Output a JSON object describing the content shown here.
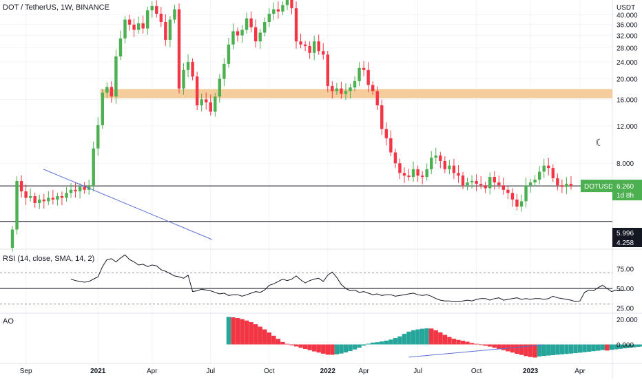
{
  "title": "DOT / TetherUS, 1W, BINANCE",
  "currency_label": "USDT",
  "theme_toggle_icon": "moon-icon",
  "rsi_label": "RSI (14, close, SMA, 14, 2)",
  "ao_label": "AO",
  "colors": {
    "up": "#26a69a",
    "up_bright": "#4caf50",
    "down": "#f23645",
    "zone": "#f3c48c",
    "trendline": "#5b6fd6",
    "grid": "#f0f3fa",
    "axis_text": "#131722",
    "ticker_badge": "#4caf50",
    "dark_badge": "#131722"
  },
  "chart_data": [
    {
      "type": "candlestick",
      "panel": "price",
      "ylabel": "USDT",
      "ylim": [
        3.2,
        47
      ],
      "yticks": [
        8,
        12,
        16,
        20,
        24,
        28,
        32,
        36,
        40
      ],
      "ytick_labels": [
        "8.000",
        "12.000",
        "16.000",
        "20.000",
        "24.000",
        "28.000",
        "32.000",
        "36.000",
        "40.000"
      ],
      "x_labels": [
        "Sep",
        "2021",
        "Apr",
        "Jul",
        "Oct",
        "2022",
        "Apr",
        "Jul",
        "Oct",
        "2023",
        "Apr"
      ],
      "resistance_zone": [
        16.2,
        17.9
      ],
      "horizontal_lines": [
        6.26,
        4.258
      ],
      "trendline": [
        [
          6.9,
          7.5
        ],
        [
          44.3,
          3.5
        ]
      ],
      "price_badges": [
        {
          "symbol": "DOTUSDT",
          "value": "6.260",
          "sub": "1d 8h"
        },
        {
          "value": "5.996"
        },
        {
          "value": "4.258"
        }
      ],
      "closes": [
        3.9,
        6.6,
        5.9,
        5.5,
        5.6,
        5.2,
        5.4,
        5.3,
        5.5,
        5.4,
        5.6,
        5.5,
        5.8,
        6.0,
        5.9,
        6.2,
        6.0,
        6.3,
        9.4,
        12.1,
        17.2,
        18.3,
        16.5,
        25.5,
        31.0,
        38.0,
        36.0,
        34.0,
        36.5,
        34.5,
        42.0,
        44.0,
        40.5,
        37.0,
        30.5,
        38.0,
        42.5,
        18.0,
        22.0,
        24.0,
        20.5,
        15.0,
        16.0,
        15.5,
        14.0,
        16.5,
        20.0,
        23.5,
        29.0,
        33.5,
        32.0,
        34.0,
        38.5,
        35.0,
        30.0,
        33.0,
        37.0,
        40.5,
        42.5,
        41.5,
        44.5,
        47.0,
        43.0,
        30.0,
        29.0,
        28.5,
        26.5,
        30.0,
        27.0,
        26.0,
        18.5,
        17.5,
        18.0,
        17.0,
        17.5,
        18.2,
        19.5,
        22.5,
        22.0,
        18.7,
        17.5,
        15.0,
        11.6,
        10.5,
        9.0,
        8.0,
        7.2,
        7.0,
        6.9,
        7.5,
        7.0,
        6.9,
        7.5,
        8.5,
        8.7,
        8.2,
        7.5,
        7.8,
        7.2,
        7.0,
        6.3,
        6.5,
        6.6,
        6.4,
        6.3,
        6.1,
        6.9,
        6.5,
        6.3,
        6.0,
        5.8,
        5.4,
        5.0,
        5.3,
        6.3,
        6.5,
        6.7,
        7.3,
        7.8,
        7.6,
        6.8,
        6.3,
        6.2,
        6.4,
        6.26
      ]
    },
    {
      "type": "line",
      "panel": "rsi",
      "name": "RSI (14, close, SMA, 14, 2)",
      "ylim": [
        21,
        95
      ],
      "yticks": [
        25,
        50,
        75
      ],
      "ytick_labels": [
        "25.00",
        "50.00",
        "75.00"
      ],
      "bands": [
        30,
        50,
        70
      ],
      "x_start_index": 13,
      "values": [
        62,
        60,
        59,
        58,
        59,
        62,
        65,
        78,
        87,
        88,
        84,
        89,
        93,
        87,
        84,
        80,
        81,
        78,
        80,
        79,
        74,
        72,
        69,
        66,
        65,
        63,
        67,
        46,
        47,
        49,
        48,
        47,
        45,
        43,
        44,
        41,
        42,
        42,
        40,
        42,
        44,
        46,
        45,
        48,
        54,
        56,
        59,
        62,
        60,
        62,
        66,
        61,
        57,
        60,
        62,
        63,
        59,
        67,
        71,
        64,
        55,
        50,
        47,
        48,
        45,
        46,
        44,
        42,
        43,
        41,
        42,
        42,
        40,
        41,
        42,
        43,
        44,
        42,
        41,
        42,
        40,
        37,
        35,
        34,
        34,
        33,
        33,
        34,
        35,
        34,
        36,
        37,
        37,
        35,
        37,
        38,
        35,
        36,
        37,
        38,
        36,
        37,
        36,
        37,
        37,
        36,
        37,
        40,
        38,
        37,
        36,
        35,
        33,
        34,
        45,
        48,
        47,
        51,
        54,
        50,
        46,
        48,
        47,
        48
      ]
    },
    {
      "type": "bar",
      "panel": "ao",
      "name": "AO",
      "ylim": [
        -13,
        24
      ],
      "yticks": [
        0,
        20
      ],
      "ytick_labels": [
        "0.000",
        "20.000"
      ],
      "x_start_index": 48,
      "values": [
        22.1,
        21.8,
        21.2,
        20.3,
        19.2,
        17.9,
        16.2,
        14.3,
        12.1,
        9.6,
        7.0,
        4.5,
        2.0,
        0.5,
        -0.6,
        -1.6,
        -2.6,
        -3.6,
        -4.6,
        -5.6,
        -6.5,
        -7.4,
        -8.2,
        -8.3,
        -7.9,
        -7.3,
        -6.4,
        -5.3,
        -4.0,
        -2.6,
        -0.9,
        0.6,
        1.5,
        1.8,
        2.4,
        3.1,
        3.9,
        5.2,
        6.5,
        8.6,
        10.3,
        11.4,
        12.1,
        12.6,
        12.9,
        12.8,
        11.4,
        9.7,
        7.7,
        6.0,
        4.6,
        3.7,
        3.0,
        2.2,
        1.2,
        0.5,
        -0.3,
        -1.0,
        -1.7,
        -2.6,
        -3.5,
        -4.5,
        -5.5,
        -6.5,
        -7.5,
        -8.4,
        -9.3,
        -10.1,
        -10.5,
        -9.6,
        -9.2,
        -8.9,
        -8.6,
        -8.2,
        -7.9,
        -7.6,
        -7.3,
        -7.0,
        -6.6,
        -6.2,
        -5.8,
        -5.4,
        -5.0,
        -4.5,
        -4.9,
        -4.3,
        -3.9,
        -3.5,
        -3.1,
        -2.7,
        -2.3,
        -1.9,
        -1.6,
        -1.2,
        -0.9,
        -0.6,
        -0.3,
        -0.1,
        0.1,
        -0.1,
        -0.2,
        -0.1,
        -0.2,
        -0.1,
        -0.2,
        -0.1
      ]
    }
  ]
}
